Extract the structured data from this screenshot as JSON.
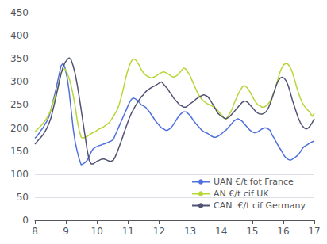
{
  "chart_data": {
    "type": "line",
    "x": [
      8,
      8.0647,
      8.1295,
      8.1942,
      8.259,
      8.3237,
      8.3885,
      8.4532,
      8.518,
      8.5827,
      8.6475,
      8.7122,
      8.777,
      8.8417,
      8.9065,
      8.9712,
      9.036,
      9.1007,
      9.1655,
      9.2302,
      9.295,
      9.3597,
      9.4245,
      9.4892,
      9.554,
      9.6187,
      9.6835,
      9.7482,
      9.8129,
      9.8777,
      9.9424,
      10.0072,
      10.0719,
      10.1367,
      10.2014,
      10.2662,
      10.3309,
      10.3957,
      10.4604,
      10.5252,
      10.5899,
      10.6547,
      10.7194,
      10.7842,
      10.8489,
      10.9137,
      10.9784,
      11.0432,
      11.1079,
      11.1727,
      11.2374,
      11.3022,
      11.3669,
      11.4317,
      11.4964,
      11.5612,
      11.6259,
      11.6906,
      11.7554,
      11.8201,
      11.8849,
      11.9496,
      12.0144,
      12.0791,
      12.1439,
      12.2086,
      12.2734,
      12.3381,
      12.4029,
      12.4676,
      12.5324,
      12.5971,
      12.6619,
      12.7266,
      12.7914,
      12.8561,
      12.9209,
      12.9856,
      13.0504,
      13.1151,
      13.1799,
      13.2446,
      13.3094,
      13.3741,
      13.4388,
      13.5036,
      13.5683,
      13.6331,
      13.6978,
      13.7626,
      13.8273,
      13.8921,
      13.9568,
      14.0216,
      14.0863,
      14.1511,
      14.2158,
      14.2806,
      14.3453,
      14.4101,
      14.4748,
      14.5396,
      14.6043,
      14.6691,
      14.7338,
      14.7986,
      14.8633,
      14.9281,
      14.9928,
      15.0576,
      15.1223,
      15.1871,
      15.2518,
      15.3165,
      15.3813,
      15.446,
      15.5108,
      15.5755,
      15.6403,
      15.705,
      15.7698,
      15.8345,
      15.8993,
      15.964,
      16.0288,
      16.0935,
      16.1583,
      16.223,
      16.2878,
      16.3525,
      16.4173,
      16.482,
      16.5468,
      16.6115,
      16.6763,
      16.741,
      16.8058,
      16.8705,
      16.9353,
      17
    ],
    "series": [
      {
        "name": "UAN €/t fot France",
        "values": [
          178,
          182,
          188,
          195,
          200,
          208,
          215,
          225,
          240,
          258,
          275,
          295,
          315,
          335,
          340,
          330,
          310,
          280,
          240,
          200,
          170,
          150,
          133,
          120,
          122,
          125,
          130,
          138,
          148,
          155,
          158,
          160,
          162,
          163,
          165,
          166,
          168,
          170,
          172,
          175,
          185,
          195,
          205,
          215,
          225,
          235,
          245,
          255,
          262,
          265,
          263,
          260,
          255,
          250,
          248,
          245,
          240,
          235,
          228,
          222,
          215,
          210,
          205,
          200,
          198,
          195,
          195,
          198,
          202,
          208,
          215,
          222,
          228,
          232,
          235,
          235,
          232,
          228,
          222,
          215,
          210,
          205,
          200,
          195,
          192,
          190,
          188,
          185,
          182,
          180,
          180,
          182,
          185,
          188,
          192,
          195,
          200,
          205,
          210,
          215,
          218,
          220,
          218,
          215,
          210,
          205,
          200,
          195,
          192,
          190,
          190,
          192,
          195,
          198,
          200,
          200,
          198,
          195,
          185,
          178,
          170,
          162,
          155,
          148,
          140,
          135,
          132,
          130,
          132,
          135,
          138,
          142,
          148,
          155,
          160,
          162,
          165,
          168,
          170,
          172
        ]
      },
      {
        "name": "AN €/t cif UK",
        "values": [
          192,
          196,
          200,
          205,
          210,
          215,
          222,
          230,
          240,
          255,
          268,
          280,
          300,
          318,
          328,
          328,
          320,
          308,
          292,
          272,
          248,
          218,
          195,
          180,
          178,
          180,
          182,
          185,
          188,
          190,
          192,
          195,
          198,
          200,
          202,
          205,
          208,
          212,
          218,
          225,
          232,
          240,
          252,
          268,
          285,
          305,
          322,
          335,
          345,
          350,
          348,
          342,
          335,
          326,
          320,
          315,
          312,
          310,
          308,
          310,
          312,
          315,
          318,
          320,
          322,
          320,
          318,
          315,
          312,
          310,
          312,
          315,
          320,
          325,
          330,
          328,
          322,
          315,
          305,
          295,
          285,
          275,
          268,
          262,
          258,
          255,
          252,
          250,
          248,
          245,
          242,
          238,
          232,
          228,
          222,
          218,
          225,
          232,
          240,
          252,
          262,
          272,
          280,
          288,
          292,
          290,
          285,
          278,
          270,
          262,
          255,
          250,
          248,
          245,
          245,
          248,
          252,
          258,
          268,
          278,
          292,
          308,
          322,
          332,
          338,
          340,
          338,
          332,
          322,
          308,
          292,
          278,
          265,
          255,
          248,
          242,
          238,
          232,
          225,
          232
        ]
      },
      {
        "name": "CAN  €/t cif Germany",
        "values": [
          165,
          170,
          175,
          180,
          185,
          192,
          200,
          210,
          222,
          240,
          258,
          278,
          298,
          318,
          332,
          342,
          348,
          352,
          348,
          335,
          318,
          295,
          268,
          240,
          210,
          182,
          152,
          130,
          122,
          122,
          125,
          128,
          130,
          132,
          133,
          132,
          130,
          128,
          128,
          130,
          138,
          148,
          160,
          172,
          185,
          198,
          210,
          222,
          232,
          240,
          248,
          255,
          262,
          268,
          272,
          278,
          282,
          285,
          288,
          290,
          292,
          295,
          298,
          300,
          295,
          290,
          285,
          278,
          272,
          265,
          260,
          255,
          250,
          248,
          245,
          245,
          248,
          252,
          255,
          258,
          262,
          265,
          268,
          270,
          272,
          270,
          268,
          262,
          255,
          248,
          240,
          232,
          228,
          225,
          222,
          220,
          222,
          225,
          230,
          235,
          240,
          245,
          250,
          255,
          258,
          258,
          255,
          250,
          245,
          240,
          235,
          232,
          230,
          230,
          232,
          235,
          242,
          252,
          265,
          278,
          292,
          302,
          308,
          310,
          308,
          302,
          292,
          278,
          262,
          248,
          235,
          222,
          212,
          205,
          200,
          198,
          200,
          205,
          212,
          220
        ]
      }
    ],
    "xlim": [
      8,
      17
    ],
    "xticks": [
      8,
      9,
      10,
      11,
      12,
      13,
      14,
      15,
      16,
      17
    ],
    "ylim": [
      0,
      450
    ],
    "yticks": [
      0,
      50,
      100,
      150,
      200,
      250,
      300,
      350,
      400,
      450
    ],
    "grid": true,
    "legend": "lower right"
  }
}
